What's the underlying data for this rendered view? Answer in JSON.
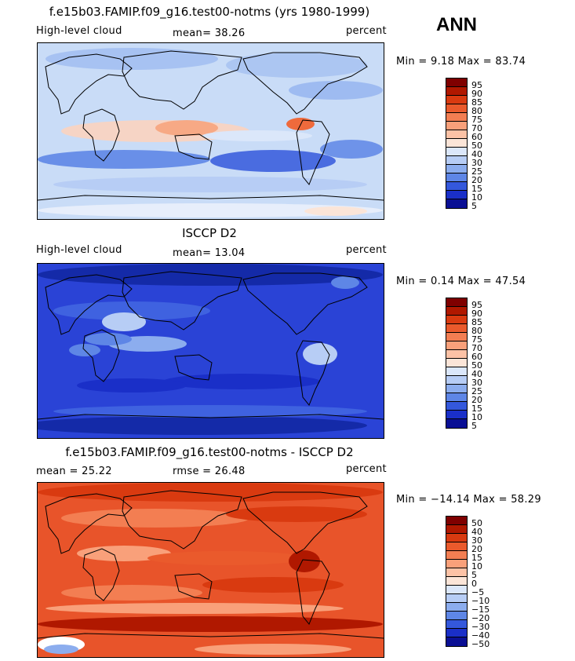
{
  "season": "ANN",
  "panels": [
    {
      "id": "model",
      "title": "f.e15b03.FAMIP.f09_g16.test00-notms (yrs 1980-1999)",
      "left_label": "High-level cloud",
      "stat1": "mean=   38.26",
      "stat2": "",
      "units": "percent",
      "minmax": "Min =   9.18 Max =  83.74",
      "cbar_labels": [
        "95",
        "90",
        "85",
        "80",
        "75",
        "70",
        "60",
        "50",
        "40",
        "30",
        "25",
        "20",
        "15",
        "10",
        "5"
      ],
      "base_color": "#c9dcf7"
    },
    {
      "id": "obs",
      "title": "ISCCP D2",
      "left_label": "High-level cloud",
      "stat1": "mean=   13.04",
      "stat2": "",
      "units": "percent",
      "minmax": "Min =   0.14 Max =  47.54",
      "cbar_labels": [
        "95",
        "90",
        "85",
        "80",
        "75",
        "70",
        "60",
        "50",
        "40",
        "30",
        "25",
        "20",
        "15",
        "10",
        "5"
      ],
      "base_color": "#2a43d6"
    },
    {
      "id": "diff",
      "title": "f.e15b03.FAMIP.f09_g16.test00-notms - ISCCP D2",
      "left_label": "mean =   25.22",
      "stat1": "rmse =   26.48",
      "stat2": "",
      "units": "percent",
      "minmax": "Min = −14.14 Max =  58.29",
      "cbar_labels": [
        "50",
        "40",
        "30",
        "20",
        "15",
        "10",
        "5",
        "0",
        "−5",
        "−10",
        "−15",
        "−20",
        "−30",
        "−40",
        "−50"
      ],
      "base_color": "#e8542a"
    }
  ],
  "palette_top_to_bottom": [
    "#7f0000",
    "#b01800",
    "#d93a10",
    "#ea5a2c",
    "#f37e52",
    "#f9a07a",
    "#fcc2a6",
    "#fbe5d8",
    "#dbe7fa",
    "#b7cdf5",
    "#8cadee",
    "#5e86e6",
    "#3458dc",
    "#1a2fc8",
    "#0a0f94"
  ]
}
